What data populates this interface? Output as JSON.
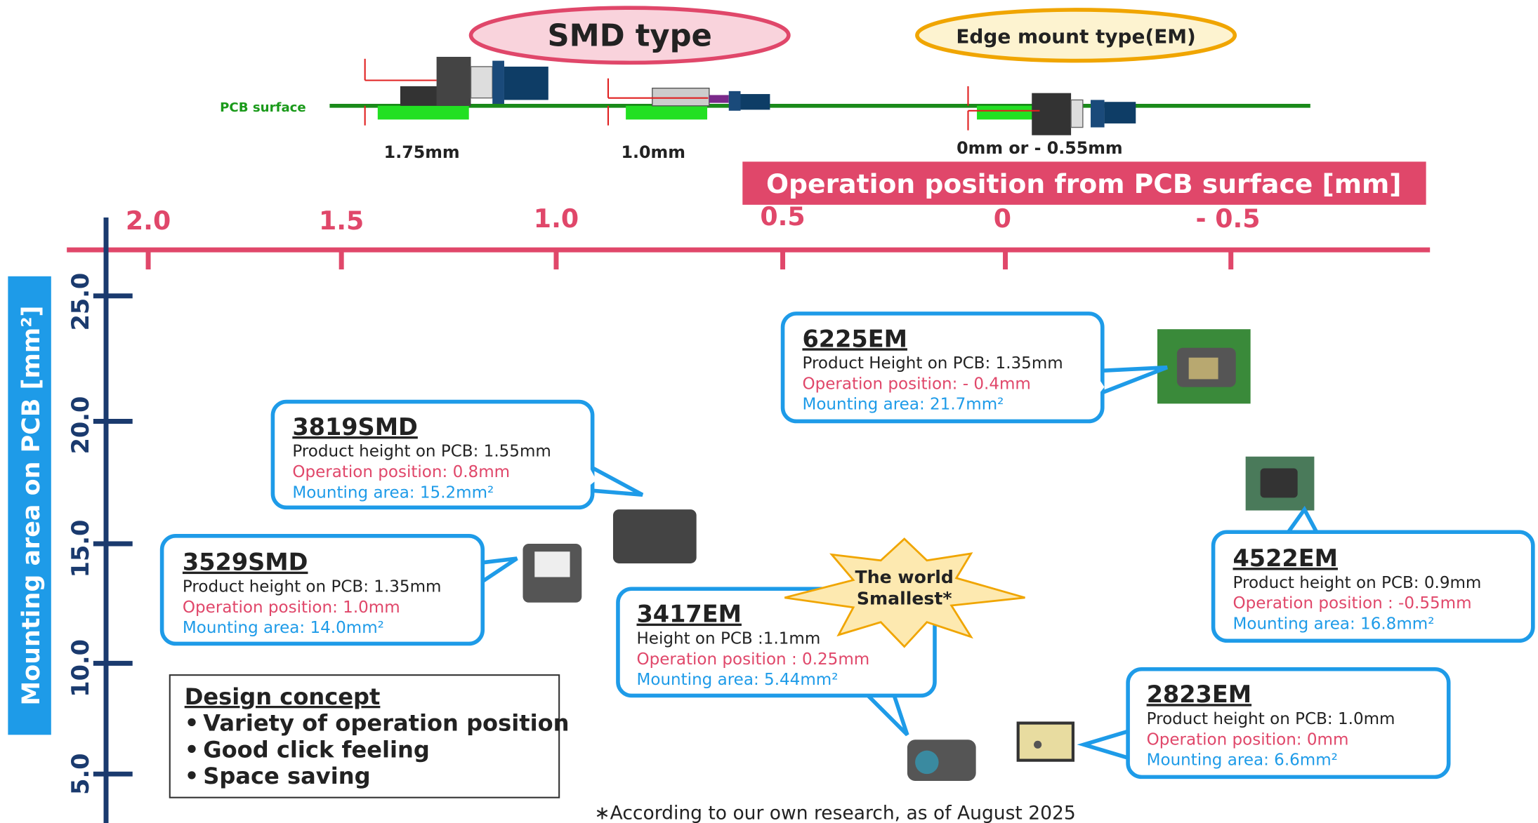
{
  "header": {
    "smd_type": "SMD type",
    "em_type": "Edge mount type(EM)",
    "pcb_surface": "PCB surface",
    "heights": [
      "1.75mm",
      "1.0mm",
      "0mm or - 0.55mm"
    ]
  },
  "top_axis": {
    "title": "Operation position from PCB surface [mm]",
    "ticks": [
      "2.0",
      "1.5",
      "1.0",
      "0.5",
      "0",
      "- 0.5"
    ]
  },
  "left_axis": {
    "title": "Mounting area on PCB [mm²]",
    "ticks": [
      "25.0",
      "20.0",
      "15.0",
      "10.0",
      "5.0"
    ]
  },
  "products": [
    {
      "name": "6225EM",
      "height": "Product Height on PCB: 1.35mm",
      "operation": "Operation position: - 0.4mm",
      "area": "Mounting area: 21.7mm²"
    },
    {
      "name": "3819SMD",
      "height": "Product height on PCB: 1.55mm",
      "operation": "Operation position: 0.8mm",
      "area": "Mounting area: 15.2mm²"
    },
    {
      "name": "3529SMD",
      "height": "Product height on PCB: 1.35mm",
      "operation": "Operation position: 1.0mm",
      "area": "Mounting area: 14.0mm²"
    },
    {
      "name": "3417EM",
      "height": "Height on PCB :1.1mm",
      "operation": "Operation position : 0.25mm",
      "area": "Mounting area: 5.44mm²"
    },
    {
      "name": "4522EM",
      "height": "Product height on PCB: 0.9mm",
      "operation": "Operation position : -0.55mm",
      "area": "Mounting area: 16.8mm²"
    },
    {
      "name": "2823EM",
      "height": "Product height on PCB: 1.0mm",
      "operation": "Operation position: 0mm",
      "area": "Mounting area: 6.6mm²"
    }
  ],
  "star": {
    "lines": [
      "The world",
      "Smallest*"
    ]
  },
  "concept": {
    "title": "Design concept",
    "items": [
      "Variety of operation position",
      "Good click feeling",
      "Space saving"
    ]
  },
  "footnote": "∗According to our own research, as of August 2025"
}
